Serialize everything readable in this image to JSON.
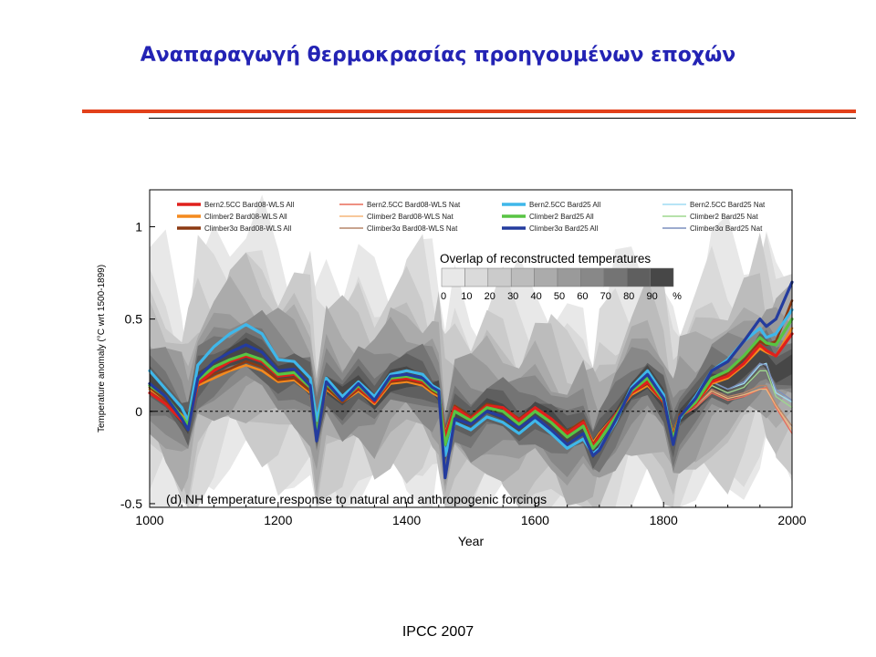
{
  "slide": {
    "title": "Αναπαραγωγή θερμοκρασίας προηγουμένων εποχών",
    "footer": "IPCC 2007"
  },
  "chart_data": {
    "type": "line",
    "panel_label": "(d) NH temperature response to natural and anthropogenic forcings",
    "xlabel": "Year",
    "ylabel": "Temperature anomaly  (°C wrt 1500-1899)",
    "xlim": [
      1000,
      2000
    ],
    "ylim": [
      -0.52,
      1.2
    ],
    "xticks": [
      1000,
      1200,
      1400,
      1600,
      1800,
      2000
    ],
    "yticks": [
      {
        "value": 1,
        "label": "1"
      },
      {
        "value": 0.5,
        "label": "0.5"
      },
      {
        "value": 0,
        "label": "0"
      },
      {
        "value": -0.5,
        "label": "-0.5"
      }
    ],
    "zero_line": "dashed",
    "overlap_scale": {
      "title": "Overlap of reconstructed temperatures",
      "labels": [
        "0",
        "10",
        "20",
        "30",
        "40",
        "50",
        "60",
        "70",
        "80",
        "90",
        "%"
      ],
      "colors": [
        "#e8e8e8",
        "#dadada",
        "#cbcbcb",
        "#bcbcbc",
        "#ababab",
        "#9a9a9a",
        "#888888",
        "#747474",
        "#5f5f5f",
        "#474747"
      ]
    },
    "x": [
      1000,
      1025,
      1050,
      1060,
      1075,
      1100,
      1125,
      1150,
      1175,
      1200,
      1225,
      1250,
      1260,
      1275,
      1300,
      1325,
      1350,
      1375,
      1400,
      1425,
      1440,
      1450,
      1460,
      1475,
      1500,
      1525,
      1550,
      1575,
      1600,
      1625,
      1650,
      1675,
      1690,
      1700,
      1725,
      1750,
      1775,
      1800,
      1815,
      1825,
      1850,
      1875,
      1900,
      1925,
      1950,
      1960,
      1975,
      2000
    ],
    "series": [
      {
        "name": "Bern2.5CC Bard08-WLS All",
        "color": "#e0201c",
        "width": 3.2,
        "values": [
          0.1,
          0.04,
          -0.05,
          -0.08,
          0.15,
          0.22,
          0.27,
          0.3,
          0.27,
          0.19,
          0.2,
          0.13,
          -0.14,
          0.15,
          0.06,
          0.13,
          0.05,
          0.17,
          0.18,
          0.16,
          0.12,
          0.1,
          -0.14,
          0.02,
          -0.04,
          0.03,
          0.02,
          -0.05,
          0.02,
          -0.04,
          -0.12,
          -0.06,
          -0.19,
          -0.14,
          -0.02,
          0.1,
          0.16,
          0.05,
          -0.14,
          -0.03,
          0.04,
          0.16,
          0.19,
          0.26,
          0.36,
          0.33,
          0.3,
          0.42
        ]
      },
      {
        "name": "Climber2 Bard08-WLS All",
        "color": "#f48a1e",
        "width": 2.6,
        "values": [
          0.12,
          0.06,
          -0.02,
          -0.06,
          0.14,
          0.18,
          0.22,
          0.25,
          0.22,
          0.16,
          0.17,
          0.1,
          -0.1,
          0.12,
          0.05,
          0.11,
          0.04,
          0.15,
          0.16,
          0.14,
          0.1,
          0.08,
          -0.12,
          0.03,
          -0.03,
          0.03,
          0.02,
          -0.04,
          0.01,
          -0.04,
          -0.11,
          -0.05,
          -0.17,
          -0.12,
          -0.02,
          0.09,
          0.14,
          0.05,
          -0.12,
          -0.02,
          0.04,
          0.15,
          0.18,
          0.25,
          0.34,
          0.32,
          0.3,
          0.45
        ]
      },
      {
        "name": "Climber3α Bard08-WLS All",
        "color": "#8c3a12",
        "width": 2.6,
        "values": [
          0.13,
          0.06,
          -0.03,
          -0.07,
          0.15,
          0.2,
          0.23,
          0.27,
          0.24,
          0.17,
          0.18,
          0.11,
          -0.11,
          0.13,
          0.05,
          0.12,
          0.05,
          0.16,
          0.17,
          0.15,
          0.11,
          0.09,
          -0.13,
          0.03,
          -0.03,
          0.04,
          0.02,
          -0.04,
          0.02,
          -0.04,
          -0.11,
          -0.05,
          -0.18,
          -0.13,
          -0.02,
          0.1,
          0.15,
          0.05,
          -0.13,
          -0.02,
          0.05,
          0.17,
          0.21,
          0.29,
          0.38,
          0.36,
          0.38,
          0.6
        ]
      },
      {
        "name": "Bern2.5CC Bard08-WLS Nat",
        "color": "#e96b58",
        "width": 1.3,
        "values": [
          0.1,
          0.04,
          -0.05,
          -0.08,
          0.15,
          0.22,
          0.27,
          0.3,
          0.27,
          0.19,
          0.2,
          0.13,
          -0.14,
          0.15,
          0.06,
          0.13,
          0.05,
          0.17,
          0.18,
          0.16,
          0.12,
          0.1,
          -0.14,
          0.02,
          -0.04,
          0.03,
          0.02,
          -0.05,
          0.02,
          -0.04,
          -0.12,
          -0.06,
          -0.19,
          -0.14,
          -0.02,
          0.1,
          0.16,
          0.05,
          -0.14,
          -0.03,
          0.02,
          0.1,
          0.06,
          0.08,
          0.12,
          0.13,
          0.02,
          -0.12
        ]
      },
      {
        "name": "Climber2 Bard08-WLS Nat",
        "color": "#f6b57a",
        "width": 1.3,
        "values": [
          0.12,
          0.06,
          -0.02,
          -0.06,
          0.14,
          0.18,
          0.22,
          0.25,
          0.22,
          0.16,
          0.17,
          0.1,
          -0.1,
          0.12,
          0.05,
          0.11,
          0.04,
          0.15,
          0.16,
          0.14,
          0.1,
          0.08,
          -0.12,
          0.03,
          -0.03,
          0.03,
          0.02,
          -0.04,
          0.01,
          -0.04,
          -0.11,
          -0.05,
          -0.17,
          -0.12,
          -0.02,
          0.09,
          0.14,
          0.05,
          -0.12,
          -0.02,
          0.03,
          0.11,
          0.07,
          0.09,
          0.12,
          0.12,
          0.03,
          -0.1
        ]
      },
      {
        "name": "Climber3α Bard08-WLS Nat",
        "color": "#b5866a",
        "width": 1.3,
        "values": [
          0.13,
          0.06,
          -0.03,
          -0.07,
          0.15,
          0.2,
          0.23,
          0.27,
          0.24,
          0.17,
          0.18,
          0.11,
          -0.11,
          0.13,
          0.05,
          0.12,
          0.05,
          0.16,
          0.17,
          0.15,
          0.11,
          0.09,
          -0.13,
          0.03,
          -0.03,
          0.04,
          0.02,
          -0.04,
          0.02,
          -0.04,
          -0.11,
          -0.05,
          -0.18,
          -0.13,
          -0.02,
          0.1,
          0.15,
          0.05,
          -0.13,
          -0.02,
          0.03,
          0.12,
          0.08,
          0.1,
          0.14,
          0.14,
          0.04,
          -0.08
        ]
      },
      {
        "name": "Bern2.5CC Bard25 All",
        "color": "#3fb7ea",
        "width": 3.2,
        "values": [
          0.22,
          0.12,
          0.02,
          -0.05,
          0.25,
          0.35,
          0.42,
          0.47,
          0.42,
          0.28,
          0.27,
          0.18,
          -0.05,
          0.18,
          0.08,
          0.16,
          0.08,
          0.2,
          0.22,
          0.2,
          0.14,
          0.12,
          -0.24,
          -0.06,
          -0.1,
          -0.03,
          -0.06,
          -0.12,
          -0.05,
          -0.12,
          -0.2,
          -0.15,
          -0.23,
          -0.2,
          -0.06,
          0.13,
          0.22,
          0.09,
          -0.17,
          -0.04,
          0.08,
          0.22,
          0.28,
          0.38,
          0.45,
          0.4,
          0.42,
          0.55
        ]
      },
      {
        "name": "Climber2 Bard25 All",
        "color": "#58c443",
        "width": 3.2,
        "values": [
          0.14,
          0.08,
          -0.03,
          -0.07,
          0.17,
          0.24,
          0.28,
          0.31,
          0.28,
          0.2,
          0.21,
          0.13,
          -0.12,
          0.15,
          0.06,
          0.14,
          0.06,
          0.18,
          0.19,
          0.17,
          0.12,
          0.1,
          -0.18,
          0.0,
          -0.05,
          0.02,
          0.0,
          -0.07,
          0.0,
          -0.06,
          -0.14,
          -0.08,
          -0.2,
          -0.16,
          -0.03,
          0.11,
          0.18,
          0.06,
          -0.15,
          -0.03,
          0.05,
          0.18,
          0.22,
          0.3,
          0.4,
          0.37,
          0.36,
          0.5
        ]
      },
      {
        "name": "Climber3α Bard25 All",
        "color": "#243c9e",
        "width": 3.2,
        "values": [
          0.15,
          0.08,
          -0.04,
          -0.1,
          0.18,
          0.27,
          0.32,
          0.36,
          0.32,
          0.22,
          0.23,
          0.14,
          -0.16,
          0.16,
          0.06,
          0.15,
          0.06,
          0.19,
          0.2,
          0.18,
          0.13,
          0.11,
          -0.36,
          -0.04,
          -0.07,
          0.0,
          -0.03,
          -0.09,
          -0.03,
          -0.1,
          -0.18,
          -0.12,
          -0.24,
          -0.21,
          -0.05,
          0.12,
          0.2,
          0.07,
          -0.18,
          -0.03,
          0.07,
          0.22,
          0.27,
          0.38,
          0.5,
          0.46,
          0.5,
          0.7
        ]
      },
      {
        "name": "Bern2.5CC Bard25 Nat",
        "color": "#9fdcf3",
        "width": 1.3,
        "values": [
          0.22,
          0.12,
          0.02,
          -0.05,
          0.25,
          0.35,
          0.42,
          0.47,
          0.42,
          0.28,
          0.27,
          0.18,
          -0.05,
          0.18,
          0.08,
          0.16,
          0.08,
          0.2,
          0.22,
          0.2,
          0.14,
          0.12,
          -0.24,
          -0.06,
          -0.1,
          -0.03,
          -0.06,
          -0.12,
          -0.05,
          -0.12,
          -0.2,
          -0.15,
          -0.23,
          -0.2,
          -0.06,
          0.13,
          0.22,
          0.09,
          -0.17,
          -0.04,
          0.05,
          0.16,
          0.12,
          0.15,
          0.25,
          0.26,
          0.1,
          0.05
        ]
      },
      {
        "name": "Climber2 Bard25 Nat",
        "color": "#9ed88e",
        "width": 1.3,
        "values": [
          0.14,
          0.08,
          -0.03,
          -0.07,
          0.17,
          0.24,
          0.28,
          0.31,
          0.28,
          0.2,
          0.21,
          0.13,
          -0.12,
          0.15,
          0.06,
          0.14,
          0.06,
          0.18,
          0.19,
          0.17,
          0.12,
          0.1,
          -0.18,
          0.0,
          -0.05,
          0.02,
          0.0,
          -0.07,
          0.0,
          -0.06,
          -0.14,
          -0.08,
          -0.2,
          -0.16,
          -0.03,
          0.11,
          0.18,
          0.06,
          -0.15,
          -0.03,
          0.04,
          0.14,
          0.1,
          0.13,
          0.22,
          0.22,
          0.08,
          0.02
        ]
      },
      {
        "name": "Climber3α Bard25 Nat",
        "color": "#7c8fbd",
        "width": 1.3,
        "values": [
          0.15,
          0.08,
          -0.04,
          -0.1,
          0.18,
          0.27,
          0.32,
          0.36,
          0.32,
          0.22,
          0.23,
          0.14,
          -0.16,
          0.16,
          0.06,
          0.15,
          0.06,
          0.19,
          0.2,
          0.18,
          0.13,
          0.11,
          -0.36,
          -0.04,
          -0.07,
          0.0,
          -0.03,
          -0.09,
          -0.03,
          -0.1,
          -0.18,
          -0.12,
          -0.24,
          -0.21,
          -0.05,
          0.12,
          0.2,
          0.07,
          -0.18,
          -0.03,
          0.06,
          0.16,
          0.12,
          0.16,
          0.26,
          0.25,
          0.12,
          0.06
        ]
      }
    ],
    "legend_placement": "top"
  }
}
